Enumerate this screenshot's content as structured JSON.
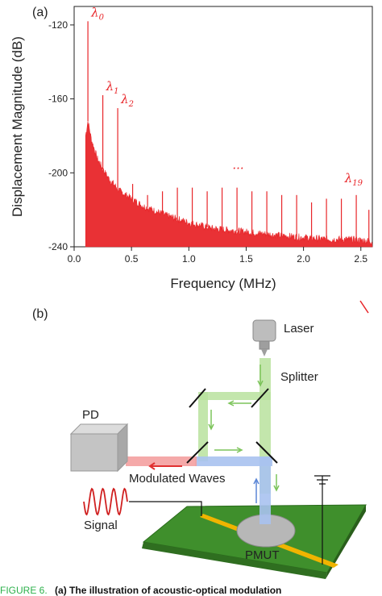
{
  "figure": {
    "panel_a_label": "(a)",
    "panel_b_label": "(b)",
    "caption_prefix": "FIGURE 6.",
    "caption_text": "(a) The illustration of acoustic-optical modulation"
  },
  "chart_data": {
    "type": "line",
    "title": "",
    "xlabel": "Frequency (MHz)",
    "ylabel": "Displacement Magnitude (dB)",
    "xlim": [
      0,
      2.6
    ],
    "ylim": [
      -240,
      -110
    ],
    "x_ticks": [
      0.0,
      0.5,
      1.0,
      1.5,
      2.0,
      2.5
    ],
    "x_tick_labels": [
      "0.0",
      "0.5",
      "1.0",
      "1.5",
      "2.0",
      "2.5"
    ],
    "y_ticks": [
      -120,
      -160,
      -200,
      -240
    ],
    "y_tick_labels": [
      "-120",
      "-160",
      "-200",
      "-240"
    ],
    "grid": false,
    "color": "#e8262a",
    "noise_floor": {
      "x": [
        0.1,
        0.12,
        0.15,
        0.2,
        0.25,
        0.3,
        0.4,
        0.5,
        0.6,
        0.8,
        1.0,
        1.2,
        1.5,
        1.8,
        2.0,
        2.2,
        2.4,
        2.6
      ],
      "y": [
        -180,
        -172,
        -182,
        -192,
        -198,
        -203,
        -210,
        -214,
        -218,
        -223,
        -227,
        -230,
        -232,
        -234,
        -235,
        -236,
        -236,
        -237
      ]
    },
    "peaks": {
      "x": [
        0.12,
        0.25,
        0.38,
        0.51,
        0.64,
        0.77,
        0.9,
        1.03,
        1.16,
        1.29,
        1.42,
        1.55,
        1.68,
        1.81,
        1.94,
        2.07,
        2.2,
        2.33,
        2.46,
        2.57
      ],
      "y": [
        -118,
        -158,
        -165,
        -206,
        -212,
        -210,
        -208,
        -208,
        -210,
        -208,
        -208,
        -210,
        -210,
        -212,
        -212,
        -216,
        -214,
        -214,
        -212,
        -220
      ]
    },
    "peak_labels": [
      {
        "name": "λ",
        "sub": "0",
        "x": 0.12
      },
      {
        "name": "λ",
        "sub": "1",
        "x": 0.25
      },
      {
        "name": "λ",
        "sub": "2",
        "x": 0.38
      },
      {
        "name": "λ",
        "sub": "19",
        "x": 2.57
      }
    ],
    "ellipsis": "..."
  },
  "diagram": {
    "laser_label": "Laser",
    "splitter_label": "Splitter",
    "pd_label": "PD",
    "modulated_waves_label": "Modulated Waves",
    "signal_label": "Signal",
    "pmut_label": "PMUT",
    "colors": {
      "green_beam": "#a8d88c",
      "blue_beam": "#8fb0e6",
      "red_beam": "#f08080",
      "board": "#3f8f2c",
      "electrode": "#f0b400",
      "signal_wave": "#d02020"
    }
  }
}
